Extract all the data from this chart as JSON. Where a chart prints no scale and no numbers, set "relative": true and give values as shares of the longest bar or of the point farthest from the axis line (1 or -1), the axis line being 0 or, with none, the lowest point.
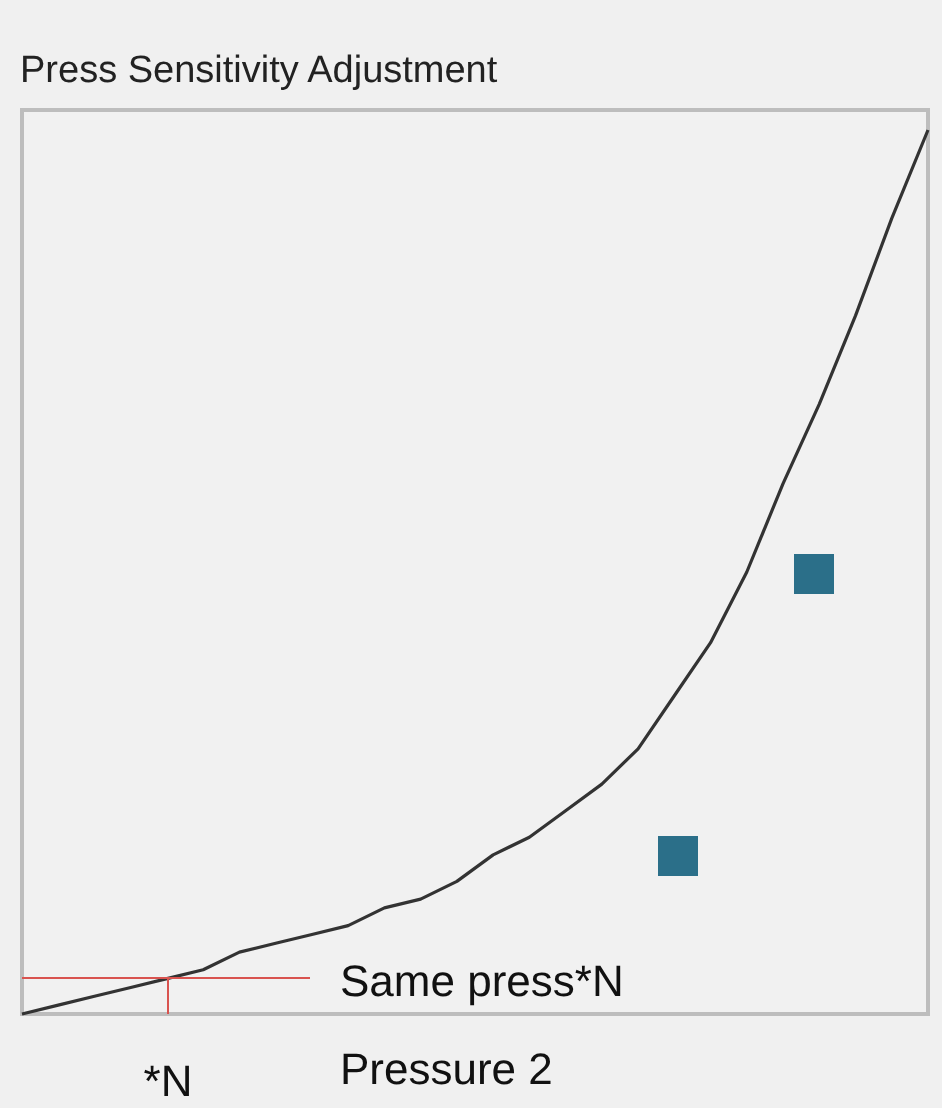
{
  "chart_data": {
    "type": "line",
    "title": "Press Sensitivity Adjustment",
    "relative": true,
    "categories": [
      null,
      null,
      null,
      null,
      null,
      null,
      null,
      null,
      null,
      null,
      null,
      null,
      null,
      null,
      null,
      null,
      null,
      null,
      null,
      null,
      null,
      null,
      null,
      null,
      null,
      null
    ],
    "series": [
      {
        "color": "#333333",
        "values": [
          0,
          0.01,
          0.02,
          0.03,
          0.04,
          0.05,
          0.07,
          0.08,
          0.09,
          0.1,
          0.12,
          0.13,
          0.15,
          0.18,
          0.2,
          0.23,
          0.26,
          0.3,
          0.36,
          0.42,
          0.5,
          0.6,
          0.69,
          0.79,
          0.9,
          1
        ]
      }
    ],
    "annotations": [
      "Same press*N",
      "*N",
      "Pressure 2"
    ]
  }
}
